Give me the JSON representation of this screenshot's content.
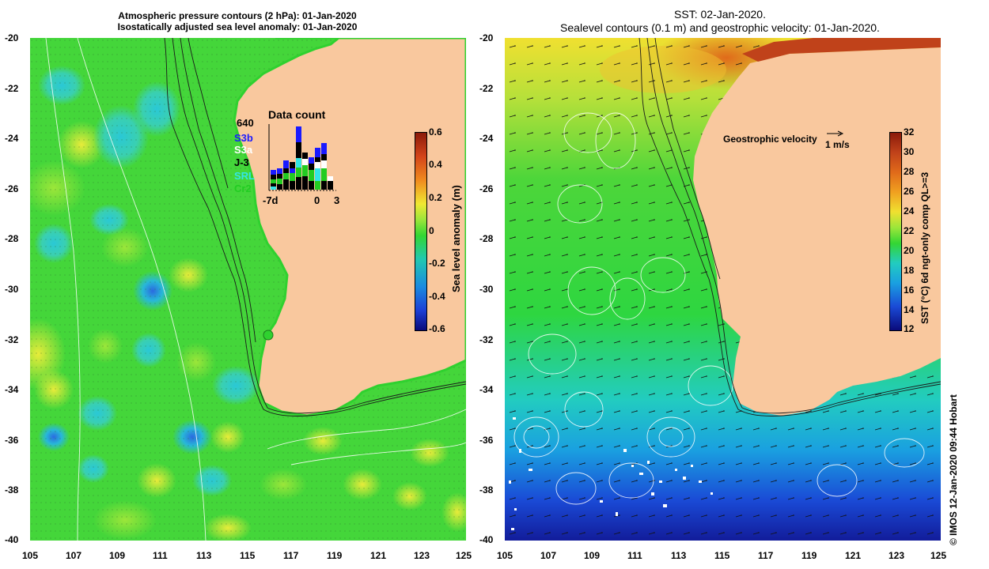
{
  "left_panel": {
    "title_line1": "Atmospheric pressure contours (2 hPa): 01-Jan-2020",
    "title_line2": "Isostatically adjusted sea level anomaly: 01-Jan-2020",
    "colorbar": {
      "title": "Sea level anomaly (m)",
      "ticks": [
        "0.6",
        "0.4",
        "0.2",
        "0",
        "-0.2",
        "-0.4",
        "-0.6"
      ]
    },
    "data_count": {
      "title": "Data count",
      "max_label": "640",
      "missions": [
        {
          "name": "S3b",
          "color": "#1a1aff"
        },
        {
          "name": "S3a",
          "color": "#ffffff"
        },
        {
          "name": "J-3",
          "color": "#000000"
        },
        {
          "name": "SRL",
          "color": "#33e6e6"
        },
        {
          "name": "Cr2",
          "color": "#22cc22"
        }
      ],
      "x_labels": [
        "-7d",
        "0",
        "3"
      ]
    }
  },
  "right_panel": {
    "title_line1": "SST: 02-Jan-2020.",
    "title_line2": "Sealevel contours (0.1 m) and geostrophic velocity: 01-Jan-2020.",
    "legend_label": "Geostrophic velocity",
    "legend_scale": "1 m/s",
    "colorbar": {
      "title": "SST (°C) 6d ngt-only comp QL>=3",
      "ticks": [
        "32",
        "30",
        "28",
        "26",
        "24",
        "22",
        "20",
        "18",
        "16",
        "14",
        "12"
      ]
    }
  },
  "axes": {
    "lat_ticks": [
      "-20",
      "-22",
      "-24",
      "-26",
      "-28",
      "-30",
      "-32",
      "-34",
      "-36",
      "-38",
      "-40"
    ],
    "lon_ticks": [
      "105",
      "107",
      "109",
      "111",
      "113",
      "115",
      "117",
      "119",
      "121",
      "123",
      "125"
    ]
  },
  "credit": "© IMOS 12-Jan-2020 09:44 Hobart",
  "colors": {
    "land": "#f9c89e",
    "ocean_green": "#33d633",
    "sla_low": "#1c3fd6",
    "sla_high": "#f0e832"
  }
}
